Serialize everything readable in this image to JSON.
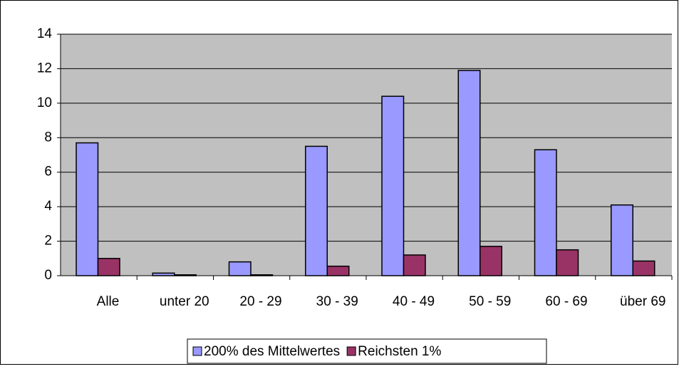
{
  "chart_data": {
    "type": "bar",
    "categories": [
      "Alle",
      "unter 20",
      "20 - 29",
      "30 - 39",
      "40 - 49",
      "50 - 59",
      "60 - 69",
      "über 69"
    ],
    "series": [
      {
        "name": "200% des Mittelwertes",
        "color": "#9999ff",
        "values": [
          7.7,
          0.15,
          0.8,
          7.5,
          10.4,
          11.9,
          7.3,
          4.1
        ]
      },
      {
        "name": "Reichsten 1%",
        "color": "#993366",
        "values": [
          1.0,
          0.05,
          0.05,
          0.55,
          1.2,
          1.7,
          1.5,
          0.85
        ]
      }
    ],
    "ylim": [
      0,
      14
    ],
    "yticks": [
      0,
      2,
      4,
      6,
      8,
      10,
      12,
      14
    ],
    "grid": true,
    "legend": "bottom"
  }
}
